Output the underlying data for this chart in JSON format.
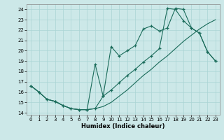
{
  "xlabel": "Humidex (Indice chaleur)",
  "xlim": [
    -0.5,
    23.5
  ],
  "ylim": [
    13.8,
    24.5
  ],
  "yticks": [
    14,
    15,
    16,
    17,
    18,
    19,
    20,
    21,
    22,
    23,
    24
  ],
  "xticks": [
    0,
    1,
    2,
    3,
    4,
    5,
    6,
    7,
    8,
    9,
    10,
    11,
    12,
    13,
    14,
    15,
    16,
    17,
    18,
    19,
    20,
    21,
    22,
    23
  ],
  "bg_color": "#cce8e8",
  "grid_color": "#aad4d4",
  "line_color": "#1a6b5a",
  "curve_top_x": [
    0,
    1,
    2,
    3,
    4,
    5,
    6,
    7,
    8,
    9,
    10,
    11,
    12,
    13,
    14,
    15,
    16,
    17,
    18,
    19,
    20,
    21,
    22,
    23
  ],
  "curve_top_y": [
    16.6,
    16.0,
    15.3,
    15.1,
    14.7,
    14.4,
    14.3,
    14.3,
    18.7,
    15.6,
    20.4,
    19.5,
    20.0,
    20.5,
    22.1,
    22.4,
    21.9,
    22.2,
    24.1,
    24.0,
    22.2,
    21.7,
    19.9,
    19.0
  ],
  "curve_bot_x": [
    0,
    1,
    2,
    3,
    4,
    5,
    6,
    7,
    8,
    9,
    10,
    11,
    12,
    13,
    14,
    15,
    16,
    17,
    18,
    19,
    20,
    21,
    22,
    23
  ],
  "curve_bot_y": [
    16.6,
    16.0,
    15.3,
    15.1,
    14.7,
    14.4,
    14.3,
    14.3,
    14.4,
    14.6,
    15.0,
    15.6,
    16.2,
    16.9,
    17.6,
    18.2,
    18.9,
    19.5,
    20.2,
    20.9,
    21.5,
    22.1,
    22.6,
    23.0
  ],
  "curve_mid_x": [
    0,
    1,
    2,
    3,
    4,
    5,
    6,
    7,
    8,
    9,
    10,
    11,
    12,
    13,
    14,
    15,
    16,
    17,
    18,
    19,
    20,
    21,
    22,
    23
  ],
  "curve_mid_y": [
    16.6,
    16.0,
    15.3,
    15.1,
    14.7,
    14.4,
    14.3,
    14.3,
    14.4,
    15.6,
    16.2,
    16.9,
    17.6,
    18.2,
    18.9,
    19.5,
    20.2,
    24.1,
    24.0,
    22.9,
    22.2,
    21.7,
    19.9,
    19.0
  ]
}
